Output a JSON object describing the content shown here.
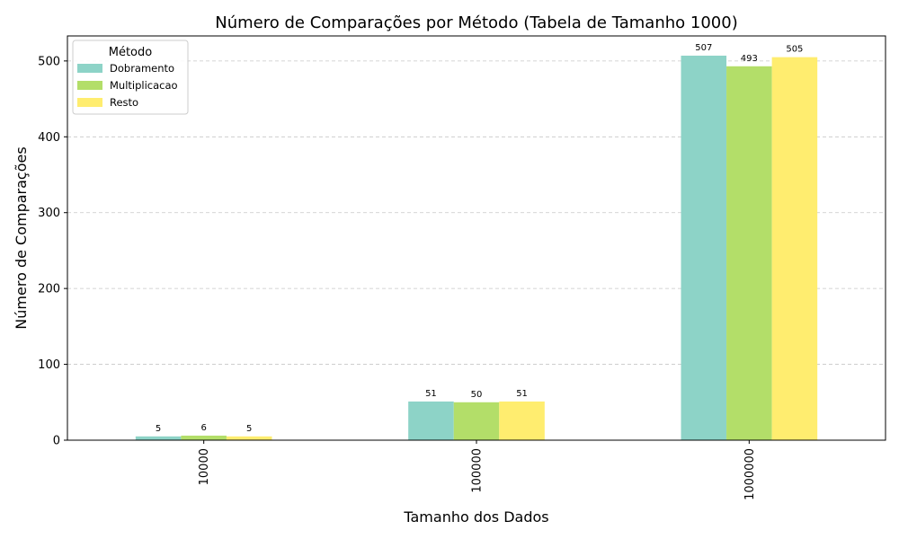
{
  "chart_data": {
    "type": "bar",
    "title": "Número de Comparações por Método (Tabela de Tamanho 1000)",
    "xlabel": "Tamanho dos Dados",
    "ylabel": "Número de Comparações",
    "categories": [
      "10000",
      "100000",
      "1000000"
    ],
    "series": [
      {
        "name": "Dobramento",
        "values": [
          5,
          51,
          507
        ],
        "color": "#8dd3c7"
      },
      {
        "name": "Multiplicacao",
        "values": [
          6,
          50,
          493
        ],
        "color": "#b3de69"
      },
      {
        "name": "Resto",
        "values": [
          5,
          51,
          505
        ],
        "color": "#ffed6f"
      }
    ],
    "ylim": [
      0,
      533
    ],
    "yticks": [
      0,
      100,
      200,
      300,
      400,
      500
    ],
    "grid": "y-dashed",
    "legend": {
      "title": "Método",
      "placement": "top-left"
    }
  }
}
